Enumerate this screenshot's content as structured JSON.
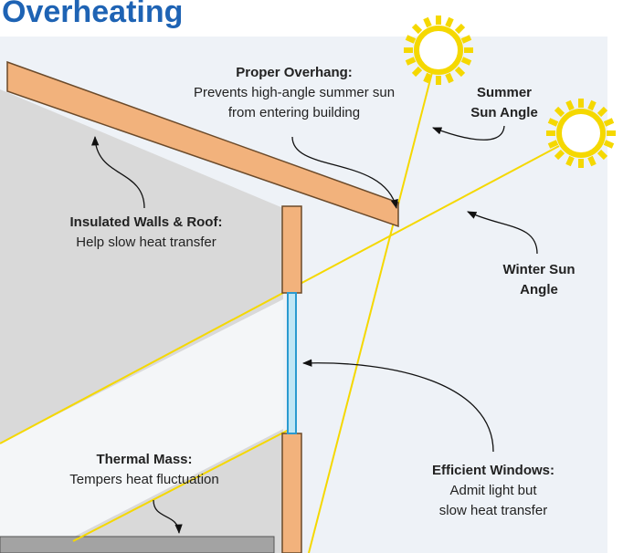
{
  "title": "Overheating",
  "labels": {
    "overhang": {
      "heading": "Proper Overhang:",
      "lines": [
        "Prevents high-angle summer sun",
        "from entering building"
      ]
    },
    "summer": {
      "lines": [
        "Summer",
        "Sun Angle"
      ]
    },
    "insulated": {
      "heading": "Insulated Walls & Roof:",
      "lines": [
        "Help slow heat transfer"
      ]
    },
    "winter": {
      "lines": [
        "Winter Sun",
        "Angle"
      ]
    },
    "thermal": {
      "heading": "Thermal Mass:",
      "lines": [
        "Tempers heat fluctuation"
      ]
    },
    "windows": {
      "heading": "Efficient Windows:",
      "lines": [
        "Admit light but",
        "slow heat transfer"
      ]
    }
  }
}
